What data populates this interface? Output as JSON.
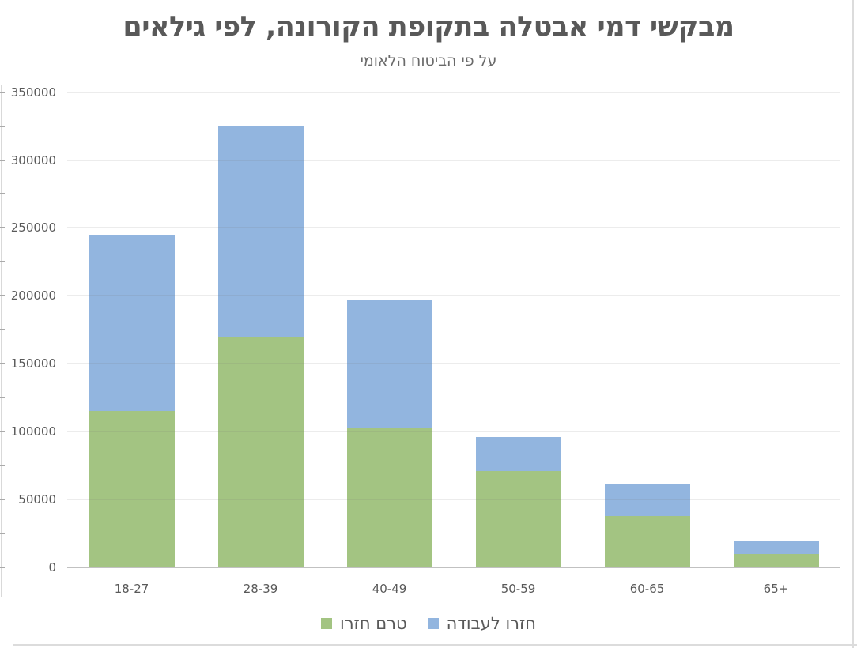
{
  "title": "מבקשי דמי אבטלה בתקופת הקורונה, לפי גילאים",
  "subtitle": "על פי הביטוח הלאומי",
  "colors": {
    "green_series": "#a3c482",
    "blue_series": "#92b5df",
    "title_text": "#595959",
    "axis_text": "#595959",
    "gridline": "#ececec",
    "axis_line": "#c1c1c1"
  },
  "legend": [
    {
      "label": "טרם חזרו",
      "color": "#a3c482"
    },
    {
      "label": "חזרו לעבודה",
      "color": "#92b5df"
    }
  ],
  "chart_data": {
    "type": "bar",
    "stacked": true,
    "title": "מבקשי דמי אבטלה בתקופת הקורונה, לפי גילאים",
    "subtitle": "על פי הביטוח הלאומי",
    "categories": [
      "18-27",
      "28-39",
      "40-49",
      "50-59",
      "60-65",
      "65+"
    ],
    "series": [
      {
        "name": "טרם חזרו",
        "color": "#a3c482",
        "values": [
          115000,
          170000,
          103000,
          71000,
          38000,
          10000
        ]
      },
      {
        "name": "חזרו לעבודה",
        "color": "#92b5df",
        "values": [
          130000,
          155000,
          94000,
          25000,
          23000,
          10000
        ]
      }
    ],
    "totals": [
      245000,
      325000,
      197000,
      96000,
      61000,
      20000
    ],
    "y_ticks": [
      0,
      50000,
      100000,
      150000,
      200000,
      250000,
      300000,
      350000
    ],
    "ylim": [
      0,
      350000
    ],
    "xlabel": "",
    "ylabel": "",
    "grid": true,
    "legend_position": "bottom"
  }
}
